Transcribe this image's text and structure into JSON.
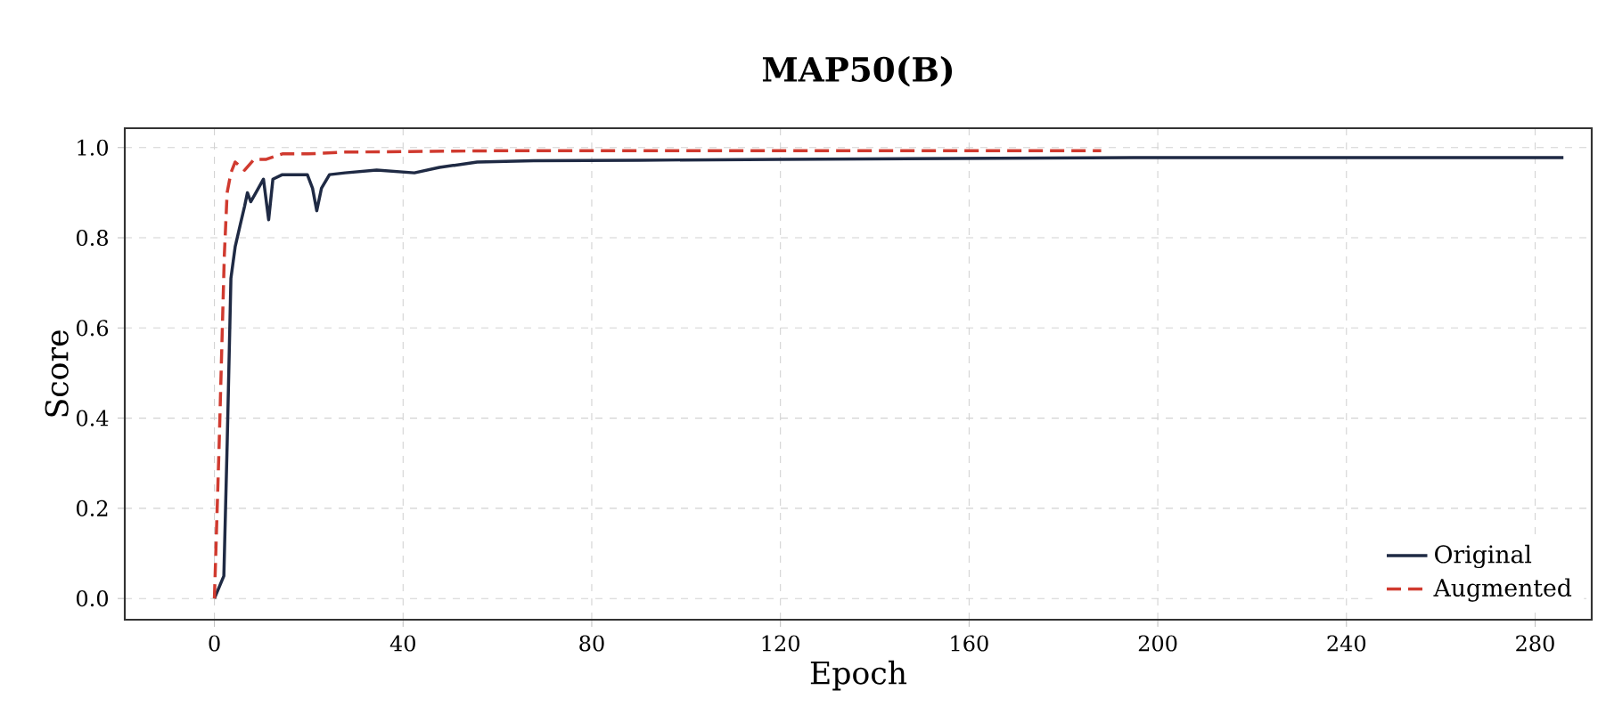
{
  "chart_data": {
    "type": "line",
    "title": "MAP50(B)",
    "xlabel": "Epoch",
    "ylabel": "Score",
    "xlim": [
      -19,
      292
    ],
    "ylim": [
      -0.047,
      1.043
    ],
    "xticks": [
      0,
      40,
      80,
      120,
      160,
      200,
      240,
      280
    ],
    "yticks": [
      {
        "value": 0,
        "label": "0.0"
      },
      {
        "value": 0.2,
        "label": "0.2"
      },
      {
        "value": 0.4,
        "label": "0.4"
      },
      {
        "value": 0.6,
        "label": "0.6"
      },
      {
        "value": 0.8,
        "label": "0.8"
      },
      {
        "value": 1,
        "label": "1.0"
      }
    ],
    "grid": true,
    "legend": "bottom right",
    "series": [
      {
        "name": "Original",
        "color": "#1f2a44",
        "line_style": "solid",
        "x": [
          0,
          2,
          2.7,
          3.5,
          4.4,
          5.5,
          6.4,
          7,
          7.7,
          8.8,
          10.4,
          11.5,
          12.4,
          14.4,
          19.7,
          20.8,
          21.7,
          22.7,
          24.4,
          27.7,
          34.4,
          42.4,
          47.7,
          55.7,
          67.7,
          90,
          120,
          160,
          200,
          240,
          270,
          286
        ],
        "values": [
          0,
          0.05,
          0.34,
          0.71,
          0.78,
          0.83,
          0.87,
          0.9,
          0.88,
          0.9,
          0.93,
          0.84,
          0.93,
          0.94,
          0.94,
          0.91,
          0.86,
          0.91,
          0.94,
          0.944,
          0.95,
          0.944,
          0.956,
          0.968,
          0.971,
          0.972,
          0.974,
          0.976,
          0.978,
          0.978,
          0.978,
          0.978
        ]
      },
      {
        "name": "Augmented",
        "color": "#d03a2f",
        "line_style": "dashed",
        "x": [
          0,
          1,
          2.1,
          2.7,
          3.5,
          4.4,
          6.4,
          8.4,
          11,
          14.4,
          19.7,
          27.7,
          60,
          100,
          140,
          188
        ],
        "values": [
          0,
          0.34,
          0.76,
          0.9,
          0.944,
          0.968,
          0.95,
          0.974,
          0.974,
          0.986,
          0.986,
          0.99,
          0.993,
          0.993,
          0.993,
          0.993
        ]
      }
    ]
  }
}
